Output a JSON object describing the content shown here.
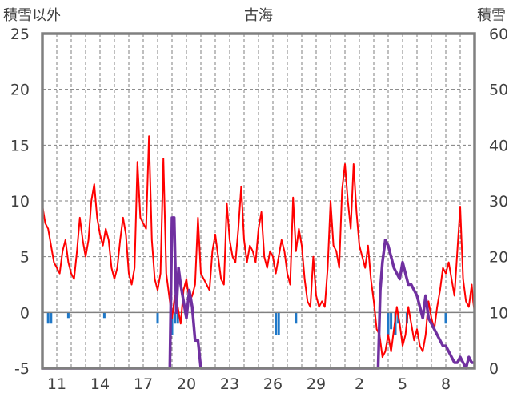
{
  "chart_data": {
    "type": "line",
    "title": "古海",
    "y_left_label": "積雪以外",
    "y_right_label": "積雪",
    "y_left_range": [
      -5,
      25
    ],
    "y_left_ticks": [
      "25",
      "20",
      "15",
      "10",
      "5",
      "0",
      "-5"
    ],
    "y_right_range": [
      0,
      60
    ],
    "y_right_ticks": [
      "60",
      "50",
      "40",
      "30",
      "20",
      "10",
      "0"
    ],
    "x_range_days": [
      0,
      30
    ],
    "x_tick_labels": [
      {
        "day": 1,
        "label": "11"
      },
      {
        "day": 4,
        "label": "14"
      },
      {
        "day": 7,
        "label": "17"
      },
      {
        "day": 10,
        "label": "20"
      },
      {
        "day": 13,
        "label": "23"
      },
      {
        "day": 16,
        "label": "26"
      },
      {
        "day": 19,
        "label": "29"
      },
      {
        "day": 22,
        "label": "2"
      },
      {
        "day": 25,
        "label": "5"
      },
      {
        "day": 28,
        "label": "8"
      }
    ],
    "grid": true,
    "colors": {
      "temperature": "#ff0000",
      "snow_depth": "#7030a0",
      "precipitation": "#1f78c8",
      "frame": "#808080",
      "grid": "#7f7f7f"
    },
    "series": [
      {
        "key": "temperature",
        "axis": "left",
        "values": [
          [
            0.0,
            9.6
          ],
          [
            0.2,
            8.0
          ],
          [
            0.4,
            7.5
          ],
          [
            0.6,
            6.0
          ],
          [
            0.8,
            4.5
          ],
          [
            1.0,
            4.0
          ],
          [
            1.2,
            3.5
          ],
          [
            1.4,
            5.5
          ],
          [
            1.6,
            6.5
          ],
          [
            1.8,
            4.5
          ],
          [
            2.0,
            3.5
          ],
          [
            2.2,
            3.0
          ],
          [
            2.4,
            5.5
          ],
          [
            2.6,
            8.5
          ],
          [
            2.8,
            6.5
          ],
          [
            3.0,
            5.0
          ],
          [
            3.2,
            6.5
          ],
          [
            3.4,
            10.0
          ],
          [
            3.6,
            11.5
          ],
          [
            3.8,
            8.5
          ],
          [
            4.0,
            7.0
          ],
          [
            4.2,
            6.0
          ],
          [
            4.4,
            7.5
          ],
          [
            4.6,
            6.5
          ],
          [
            4.8,
            4.0
          ],
          [
            5.0,
            3.0
          ],
          [
            5.2,
            4.0
          ],
          [
            5.4,
            6.5
          ],
          [
            5.6,
            8.5
          ],
          [
            5.8,
            7.0
          ],
          [
            6.0,
            3.5
          ],
          [
            6.2,
            2.5
          ],
          [
            6.4,
            4.0
          ],
          [
            6.6,
            13.5
          ],
          [
            6.8,
            8.5
          ],
          [
            7.0,
            8.0
          ],
          [
            7.2,
            7.5
          ],
          [
            7.4,
            15.8
          ],
          [
            7.6,
            6.5
          ],
          [
            7.8,
            3.0
          ],
          [
            8.0,
            2.0
          ],
          [
            8.2,
            3.5
          ],
          [
            8.4,
            13.8
          ],
          [
            8.6,
            3.5
          ],
          [
            8.8,
            1.5
          ],
          [
            9.0,
            -0.5
          ],
          [
            9.2,
            1.5
          ],
          [
            9.4,
            0.5
          ],
          [
            9.6,
            -1.0
          ],
          [
            9.8,
            2.0
          ],
          [
            10.0,
            3.0
          ],
          [
            10.2,
            1.0
          ],
          [
            10.4,
            1.5
          ],
          [
            10.6,
            2.5
          ],
          [
            10.8,
            8.5
          ],
          [
            11.0,
            3.5
          ],
          [
            11.2,
            3.0
          ],
          [
            11.4,
            2.5
          ],
          [
            11.6,
            2.0
          ],
          [
            11.8,
            5.5
          ],
          [
            12.0,
            7.0
          ],
          [
            12.2,
            5.0
          ],
          [
            12.4,
            3.0
          ],
          [
            12.6,
            2.5
          ],
          [
            12.8,
            9.8
          ],
          [
            13.0,
            6.5
          ],
          [
            13.2,
            5.0
          ],
          [
            13.4,
            4.5
          ],
          [
            13.6,
            7.5
          ],
          [
            13.8,
            11.3
          ],
          [
            14.0,
            6.5
          ],
          [
            14.2,
            4.5
          ],
          [
            14.4,
            6.0
          ],
          [
            14.6,
            5.5
          ],
          [
            14.8,
            4.5
          ],
          [
            15.0,
            7.5
          ],
          [
            15.2,
            9.0
          ],
          [
            15.4,
            5.0
          ],
          [
            15.6,
            4.0
          ],
          [
            15.8,
            5.5
          ],
          [
            16.0,
            5.0
          ],
          [
            16.2,
            3.5
          ],
          [
            16.4,
            5.0
          ],
          [
            16.6,
            6.5
          ],
          [
            16.8,
            5.5
          ],
          [
            17.0,
            3.5
          ],
          [
            17.2,
            2.5
          ],
          [
            17.4,
            10.3
          ],
          [
            17.6,
            5.5
          ],
          [
            17.8,
            7.5
          ],
          [
            18.0,
            6.0
          ],
          [
            18.2,
            3.0
          ],
          [
            18.4,
            1.0
          ],
          [
            18.6,
            0.5
          ],
          [
            18.8,
            5.0
          ],
          [
            19.0,
            1.5
          ],
          [
            19.2,
            0.5
          ],
          [
            19.4,
            1.0
          ],
          [
            19.6,
            0.5
          ],
          [
            19.8,
            4.0
          ],
          [
            20.0,
            10.0
          ],
          [
            20.2,
            6.0
          ],
          [
            20.4,
            5.5
          ],
          [
            20.6,
            4.0
          ],
          [
            20.8,
            11.0
          ],
          [
            21.0,
            13.3
          ],
          [
            21.2,
            10.0
          ],
          [
            21.4,
            7.5
          ],
          [
            21.6,
            13.3
          ],
          [
            21.8,
            9.0
          ],
          [
            22.0,
            6.0
          ],
          [
            22.2,
            5.0
          ],
          [
            22.4,
            4.0
          ],
          [
            22.6,
            6.0
          ],
          [
            22.8,
            3.0
          ],
          [
            23.0,
            1.0
          ],
          [
            23.2,
            -1.5
          ],
          [
            23.4,
            -2.0
          ],
          [
            23.6,
            -4.0
          ],
          [
            23.8,
            -3.5
          ],
          [
            24.0,
            -2.0
          ],
          [
            24.2,
            -3.5
          ],
          [
            24.4,
            -1.5
          ],
          [
            24.6,
            0.5
          ],
          [
            24.8,
            -1.0
          ],
          [
            25.0,
            -3.0
          ],
          [
            25.2,
            -2.0
          ],
          [
            25.4,
            0.5
          ],
          [
            25.6,
            -1.0
          ],
          [
            25.8,
            -2.5
          ],
          [
            26.0,
            -1.5
          ],
          [
            26.2,
            -3.0
          ],
          [
            26.4,
            -3.5
          ],
          [
            26.6,
            -2.0
          ],
          [
            26.8,
            1.0
          ],
          [
            27.0,
            -0.5
          ],
          [
            27.2,
            -1.5
          ],
          [
            27.4,
            0.5
          ],
          [
            27.6,
            2.0
          ],
          [
            27.8,
            4.0
          ],
          [
            28.0,
            3.5
          ],
          [
            28.2,
            4.5
          ],
          [
            28.4,
            3.0
          ],
          [
            28.6,
            1.5
          ],
          [
            28.8,
            5.5
          ],
          [
            29.0,
            9.5
          ],
          [
            29.2,
            3.0
          ],
          [
            29.4,
            1.0
          ],
          [
            29.6,
            0.5
          ],
          [
            29.8,
            2.5
          ],
          [
            29.9,
            1.0
          ],
          [
            30.0,
            0.0
          ]
        ]
      },
      {
        "key": "snow_depth",
        "axis": "right",
        "values": [
          [
            0.0,
            0
          ],
          [
            8.7,
            0
          ],
          [
            8.85,
            0
          ],
          [
            9.0,
            27
          ],
          [
            9.15,
            27
          ],
          [
            9.3,
            10
          ],
          [
            9.45,
            18
          ],
          [
            9.6,
            15
          ],
          [
            9.8,
            12
          ],
          [
            10.0,
            9
          ],
          [
            10.2,
            14
          ],
          [
            10.4,
            11
          ],
          [
            10.6,
            5
          ],
          [
            10.8,
            5
          ],
          [
            11.0,
            0
          ],
          [
            23.3,
            0
          ],
          [
            23.45,
            14
          ],
          [
            23.6,
            19
          ],
          [
            23.8,
            23
          ],
          [
            24.0,
            22
          ],
          [
            24.2,
            20
          ],
          [
            24.4,
            18
          ],
          [
            24.6,
            17
          ],
          [
            24.8,
            16
          ],
          [
            25.0,
            19
          ],
          [
            25.2,
            17
          ],
          [
            25.4,
            15
          ],
          [
            25.6,
            15
          ],
          [
            25.8,
            14
          ],
          [
            26.0,
            13
          ],
          [
            26.2,
            11
          ],
          [
            26.4,
            9
          ],
          [
            26.6,
            13
          ],
          [
            26.8,
            9
          ],
          [
            27.0,
            8
          ],
          [
            27.2,
            7
          ],
          [
            27.4,
            6
          ],
          [
            27.6,
            5
          ],
          [
            27.8,
            4
          ],
          [
            28.0,
            4
          ],
          [
            28.2,
            3
          ],
          [
            28.4,
            2
          ],
          [
            28.6,
            1
          ],
          [
            28.8,
            1
          ],
          [
            29.0,
            2
          ],
          [
            29.2,
            1
          ],
          [
            29.4,
            0
          ],
          [
            29.6,
            2
          ],
          [
            29.8,
            1
          ],
          [
            30.0,
            1
          ]
        ]
      },
      {
        "key": "precipitation",
        "axis": "left",
        "values": [
          [
            0.4,
            1
          ],
          [
            0.6,
            1
          ],
          [
            1.8,
            0.5
          ],
          [
            4.3,
            0.5
          ],
          [
            8.0,
            1
          ],
          [
            9.0,
            2
          ],
          [
            9.2,
            1
          ],
          [
            9.4,
            1
          ],
          [
            16.2,
            2
          ],
          [
            16.4,
            2
          ],
          [
            17.6,
            1
          ],
          [
            24.0,
            2
          ],
          [
            24.2,
            1.5
          ],
          [
            24.5,
            2
          ],
          [
            24.7,
            1
          ],
          [
            25.3,
            1
          ],
          [
            28.0,
            1
          ],
          [
            30.0,
            1
          ]
        ]
      }
    ]
  }
}
